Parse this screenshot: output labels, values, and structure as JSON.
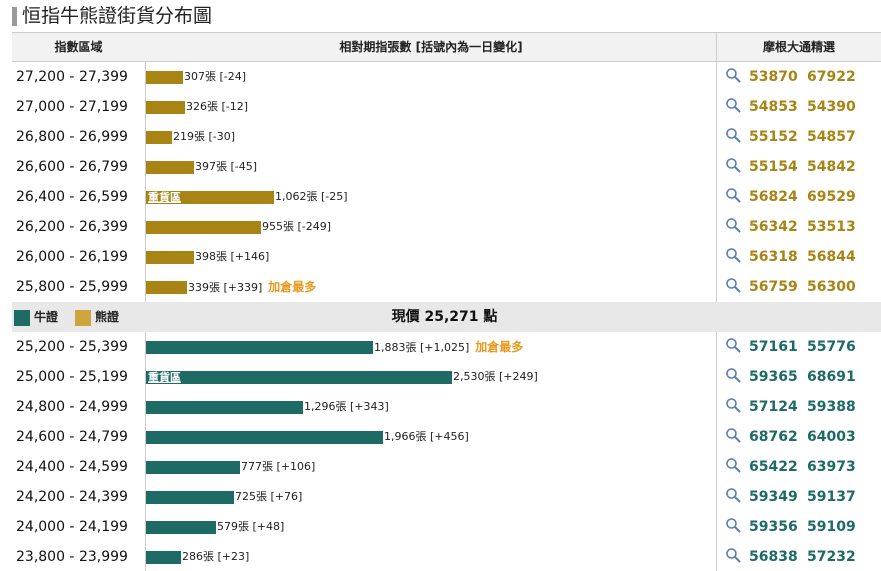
{
  "page_title": "恒指牛熊證街貨分布圖",
  "headers": {
    "range": "指數區域",
    "relative": "相對期指張數 [括號內為一日變化]",
    "picks": "摩根大通精選"
  },
  "current_price": "現價 25,271 點",
  "legend": {
    "bull": "牛證",
    "bear": "熊證"
  },
  "colors": {
    "bear": "#a88414",
    "bull": "#1e6b66",
    "accent": "#e89a20"
  },
  "heavy_label": "重貨區",
  "add_label": "加倉最多",
  "icon": "search-icon",
  "bear_rows": [
    {
      "range": "27,200 - 27,399",
      "contracts": 307,
      "count": "307張 [-24]",
      "codes": [
        "53870",
        "67922"
      ]
    },
    {
      "range": "27,000 - 27,199",
      "contracts": 326,
      "count": "326張 [-12]",
      "codes": [
        "54853",
        "54390"
      ]
    },
    {
      "range": "26,800 - 26,999",
      "contracts": 219,
      "count": "219張 [-30]",
      "codes": [
        "55152",
        "54857"
      ]
    },
    {
      "range": "26,600 - 26,799",
      "contracts": 397,
      "count": "397張 [-45]",
      "codes": [
        "55154",
        "54842"
      ]
    },
    {
      "range": "26,400 - 26,599",
      "contracts": 1062,
      "count": "1,062張 [-25]",
      "codes": [
        "56824",
        "69529"
      ],
      "heavy": true
    },
    {
      "range": "26,200 - 26,399",
      "contracts": 955,
      "count": "955張 [-249]",
      "codes": [
        "56342",
        "53513"
      ]
    },
    {
      "range": "26,000 - 26,199",
      "contracts": 398,
      "count": "398張 [+146]",
      "codes": [
        "56318",
        "56844"
      ]
    },
    {
      "range": "25,800 - 25,999",
      "contracts": 339,
      "count": "339張 [+339]",
      "codes": [
        "56759",
        "56300"
      ],
      "add_most": true
    }
  ],
  "bull_rows": [
    {
      "range": "25,200 - 25,399",
      "contracts": 1883,
      "count": "1,883張 [+1,025]",
      "codes": [
        "57161",
        "55776"
      ],
      "add_most": true
    },
    {
      "range": "25,000 - 25,199",
      "contracts": 2530,
      "count": "2,530張 [+249]",
      "codes": [
        "59365",
        "68691"
      ],
      "heavy": true
    },
    {
      "range": "24,800 - 24,999",
      "contracts": 1296,
      "count": "1,296張 [+343]",
      "codes": [
        "57124",
        "59388"
      ]
    },
    {
      "range": "24,600 - 24,799",
      "contracts": 1966,
      "count": "1,966張 [+456]",
      "codes": [
        "68762",
        "64003"
      ]
    },
    {
      "range": "24,400 - 24,599",
      "contracts": 777,
      "count": "777張 [+106]",
      "codes": [
        "65422",
        "63973"
      ]
    },
    {
      "range": "24,200 - 24,399",
      "contracts": 725,
      "count": "725張 [+76]",
      "codes": [
        "59349",
        "59137"
      ]
    },
    {
      "range": "24,000 - 24,199",
      "contracts": 579,
      "count": "579張 [+48]",
      "codes": [
        "59356",
        "59109"
      ]
    },
    {
      "range": "23,800 - 23,999",
      "contracts": 286,
      "count": "286張 [+23]",
      "codes": [
        "56838",
        "57232"
      ]
    }
  ]
}
